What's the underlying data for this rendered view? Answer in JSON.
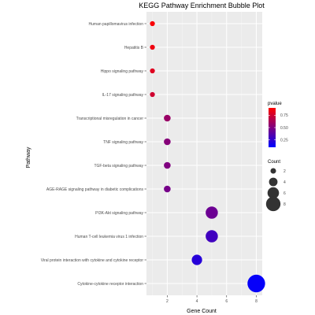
{
  "chart_data": {
    "type": "scatter",
    "title": "KEGG Pathway Enrichment Bubble Plot",
    "xlabel": "Gene Count",
    "ylabel": "Pathway",
    "xlim": [
      0.6,
      8.4
    ],
    "x_ticks": [
      2,
      4,
      6,
      8
    ],
    "grid": true,
    "categories": [
      "Human papillomavirus infection",
      "Hepatitis B",
      "Hippo signaling pathway",
      "IL-17 signaling pathway",
      "Transcriptional misregulation in cancer",
      "TNF signaling pathway",
      "TGF-beta signaling pathway",
      "AGE-RAGE signaling pathway in diabetic complications",
      "PI3K-Akt signaling pathway",
      "Human T-cell leukemia virus 1 infection",
      "Viral protein interaction with cytokine and cytokine receptor",
      "Cytokine-cytokine receptor interaction"
    ],
    "points": [
      {
        "pathway": "Human papillomavirus infection",
        "count": 1,
        "pvalue": 0.88
      },
      {
        "pathway": "Hepatitis B",
        "count": 1,
        "pvalue": 0.85
      },
      {
        "pathway": "Hippo signaling pathway",
        "count": 1,
        "pvalue": 0.8
      },
      {
        "pathway": "IL-17 signaling pathway",
        "count": 1,
        "pvalue": 0.75
      },
      {
        "pathway": "Transcriptional misregulation in cancer",
        "count": 2,
        "pvalue": 0.58
      },
      {
        "pathway": "TNF signaling pathway",
        "count": 2,
        "pvalue": 0.52
      },
      {
        "pathway": "TGF-beta signaling pathway",
        "count": 2,
        "pvalue": 0.5
      },
      {
        "pathway": "AGE-RAGE signaling pathway in diabetic complications",
        "count": 2,
        "pvalue": 0.47
      },
      {
        "pathway": "PI3K-Akt signaling pathway",
        "count": 5,
        "pvalue": 0.44
      },
      {
        "pathway": "Human T-cell leukemia virus 1 infection",
        "count": 5,
        "pvalue": 0.3
      },
      {
        "pathway": "Viral protein interaction with cytokine and cytokine receptor",
        "count": 4,
        "pvalue": 0.22
      },
      {
        "pathway": "Cytokine-cytokine receptor interaction",
        "count": 8,
        "pvalue": 0.12
      }
    ],
    "color_legend": {
      "title": "pvalue",
      "range": [
        0.1,
        0.9
      ],
      "low_color": "#0000ff",
      "high_color": "#ff0000",
      "tick_labels": [
        "0.75",
        "0.50",
        "0.25"
      ],
      "tick_values": [
        0.75,
        0.5,
        0.25
      ]
    },
    "size_legend": {
      "title": "Count",
      "values": [
        2,
        4,
        6,
        8
      ],
      "labels": [
        "2",
        "4",
        "6",
        "8"
      ]
    }
  }
}
